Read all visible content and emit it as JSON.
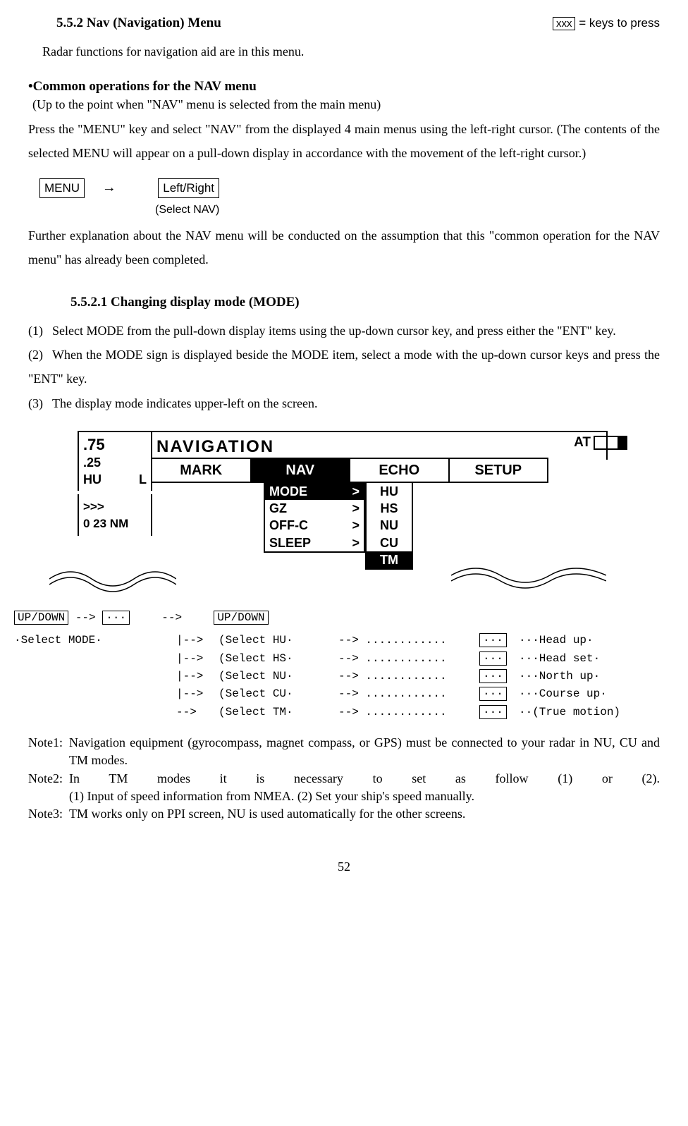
{
  "header": {
    "section_number_title": "5.5.2 Nav (Navigation) Menu",
    "legend_box": "xxx",
    "legend_text": "= keys to press"
  },
  "intro": "Radar functions for navigation aid are in this menu.",
  "common_ops_heading": "•Common operations for the NAV menu",
  "common_ops_sub": "(Up to the point when \"NAV\" menu is selected from the main menu)",
  "common_ops_para": "Press the \"MENU\" key and select \"NAV\" from the displayed 4 main menus using the left-right cursor.  (The contents of the selected MENU will appear on a pull-down display in accordance with the movement of the left-right cursor.)",
  "keyrow": {
    "menu": "MENU",
    "arrow": "→",
    "leftright": "Left/Right",
    "select_nav": "(Select NAV)"
  },
  "common_ops_para2": "Further explanation about the NAV menu will be conducted on the assumption that this \"common operation for the NAV menu\" has already been completed.",
  "subsection_heading": "5.5.2.1 Changing display mode  (MODE)",
  "steps": {
    "s1n": "(1)",
    "s1": "Select MODE from the pull-down display items using the up-down cursor key, and press either the \"ENT\" key.",
    "s2n": "(2)",
    "s2": "When the MODE sign is displayed beside the MODE item, select a mode with the up-down cursor keys and press the \"ENT\" key.",
    "s3n": "(3)",
    "s3": "The display mode indicates upper-left on the screen."
  },
  "diagram": {
    "range1": ".75",
    "range2": ".25",
    "hu": "HU",
    "l": "L",
    "chev": ">>>",
    "dist": "0 23 NM",
    "title": "NAVIGATION",
    "at": "AT",
    "tabs": [
      "MARK",
      "NAV",
      "ECHO",
      "SETUP"
    ],
    "active_tab_index": 1,
    "pulldown": [
      {
        "label": "MODE",
        "gt": ">",
        "active": true
      },
      {
        "label": "GZ",
        "gt": ">",
        "active": false
      },
      {
        "label": "OFF-C",
        "gt": ">",
        "active": false
      },
      {
        "label": "SLEEP",
        "gt": ">",
        "active": false
      }
    ],
    "submenu": [
      {
        "label": "HU",
        "active": false
      },
      {
        "label": "HS",
        "active": false
      },
      {
        "label": "NU",
        "active": false
      },
      {
        "label": "CU",
        "active": false
      },
      {
        "label": "TM",
        "active": true
      }
    ]
  },
  "flow": {
    "top_a_box": "UP/DOWN",
    "top_a_arr": "-->",
    "top_a_ent": "···",
    "top_a_arr2": "-->",
    "top_b_box": "UP/DOWN",
    "sel_mode": "·Select MODE·",
    "rows": [
      {
        "b": "|-->",
        "c": "(Select HU·",
        "d": "--> ............",
        "e": "···",
        "f": "···Head up·"
      },
      {
        "b": "|-->",
        "c": "(Select HS·",
        "d": "--> ............",
        "e": "···",
        "f": "···Head set·"
      },
      {
        "b": "|-->",
        "c": "(Select NU·",
        "d": "--> ............",
        "e": "···",
        "f": "···North up·"
      },
      {
        "b": "|-->",
        "c": "(Select CU·",
        "d": "--> ............",
        "e": "···",
        "f": "···Course up·"
      },
      {
        "b": " -->",
        "c": "(Select TM·",
        "d": "--> ............",
        "e": "···",
        "f": "··(True motion)"
      }
    ]
  },
  "notes": {
    "n1_lbl": "Note1:",
    "n1": "Navigation equipment (gyrocompass, magnet compass, or GPS) must be connected to your radar in NU, CU and TM modes.",
    "n2_lbl": "Note2:",
    "n2": "In TM modes it is necessary to set as follow (1) or (2).",
    "n2_sub": "(1) Input of speed information from NMEA.      (2) Set your ship's speed manually.",
    "n3_lbl": "Note3:",
    "n3": "TM works only on PPI screen, NU is used automatically for the other screens."
  },
  "pagenum": "52"
}
